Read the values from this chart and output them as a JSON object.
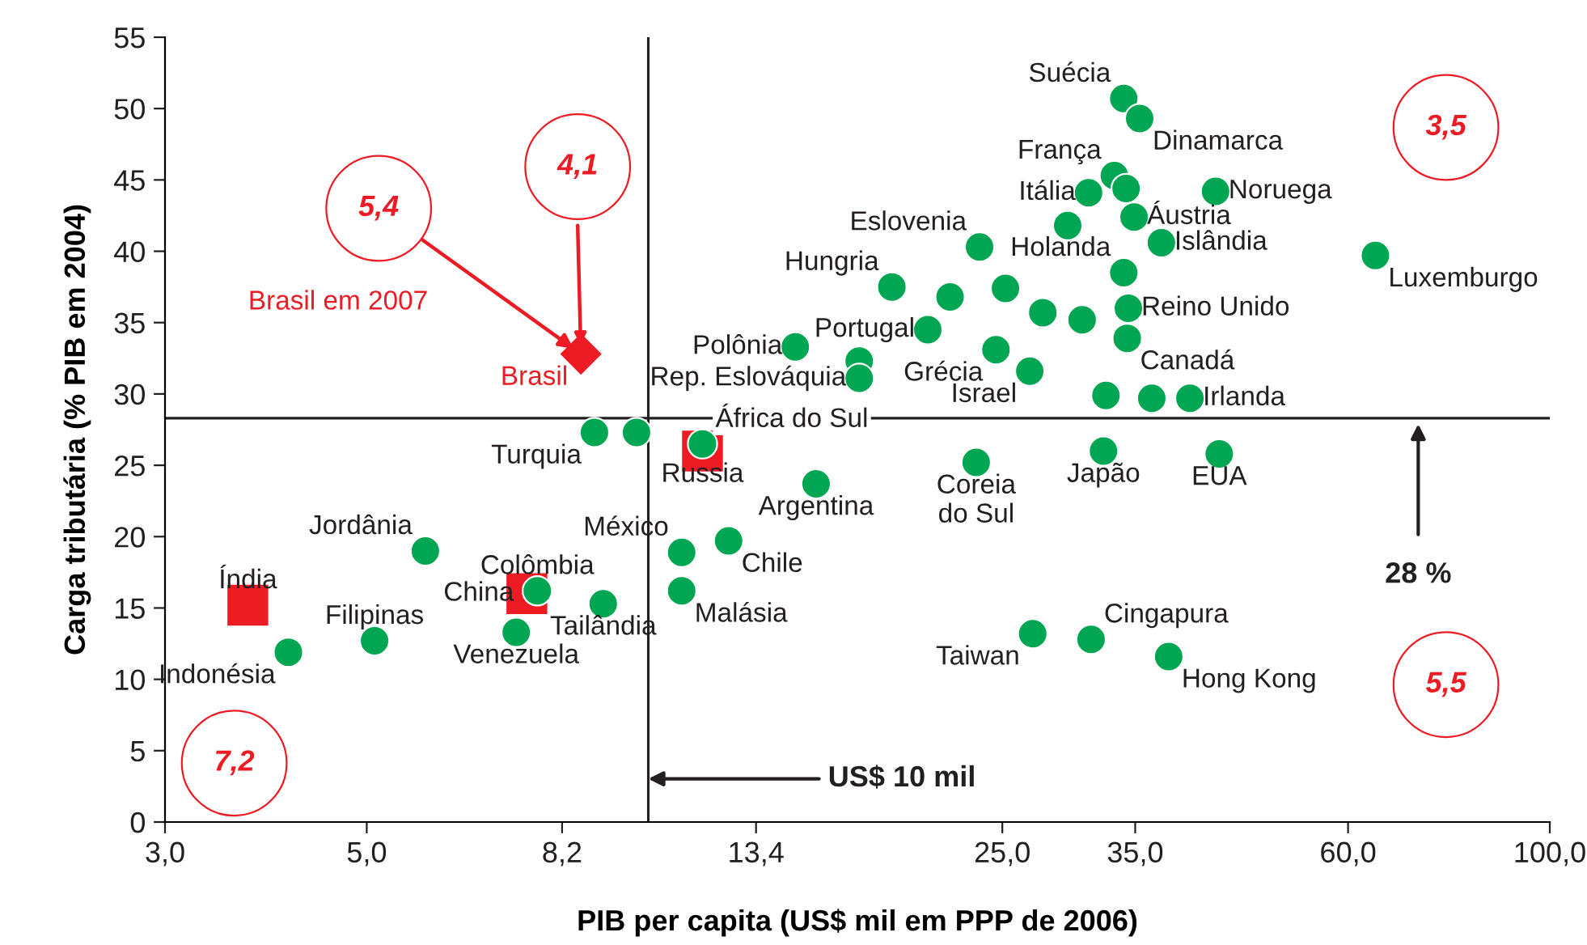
{
  "chart_data": {
    "type": "scatter",
    "xlabel": "PIB per capita (US$ mil em PPP de 2006)",
    "ylabel": "Carga tributária (% PIB em 2004)",
    "log": "x",
    "xlim": [
      3,
      100
    ],
    "xticks": [
      {
        "value": 3,
        "label": "3,0"
      },
      {
        "value": 5,
        "label": "5,0"
      },
      {
        "value": 8.2,
        "label": "8,2"
      },
      {
        "value": 13.4,
        "label": "13,4"
      },
      {
        "value": 25,
        "label": "25,0"
      },
      {
        "value": 35,
        "label": "35,0"
      },
      {
        "value": 60,
        "label": "60,0"
      },
      {
        "value": 100,
        "label": "100,0"
      }
    ],
    "ylim": [
      0,
      55
    ],
    "yticks": [
      0,
      5,
      10,
      15,
      20,
      25,
      30,
      35,
      40,
      45,
      50,
      55
    ],
    "grid": false,
    "series": [
      {
        "marker": "square",
        "color": "#ed1c24",
        "x": [
          3.7,
          7.5,
          11.7
        ],
        "values": [
          15.2,
          16.0,
          26.0
        ]
      },
      {
        "marker": "circle",
        "color": "#00a651",
        "x": [
          34.0,
          35.4,
          33.2,
          34.2,
          31.1,
          42.9,
          34.9,
          29.5,
          37.4,
          23.6,
          64.3,
          34.0,
          18.9,
          21.9,
          25.2,
          34.4,
          27.7,
          30.6,
          20.7,
          34.3,
          24.6,
          26.8,
          32.5,
          36.5,
          40.2,
          23.4,
          32.3,
          43.3,
          27.0,
          31.3,
          38.1,
          14.8,
          17.4,
          17.4,
          11.7,
          8.9,
          9.9,
          15.6,
          11.1,
          12.5,
          11.1,
          9.1,
          7.3,
          7.7,
          5.1,
          5.8,
          4.1
        ],
        "values": [
          50.7,
          49.3,
          45.3,
          44.4,
          44.1,
          44.2,
          42.4,
          41.8,
          40.6,
          40.3,
          39.7,
          38.5,
          37.5,
          36.8,
          37.4,
          36.0,
          35.7,
          35.2,
          34.5,
          33.9,
          33.1,
          31.6,
          29.9,
          29.7,
          29.7,
          25.2,
          26.0,
          25.8,
          13.2,
          12.8,
          11.6,
          33.3,
          32.3,
          31.1,
          26.5,
          27.3,
          27.3,
          23.7,
          18.9,
          19.7,
          16.2,
          15.3,
          13.3,
          16.2,
          12.7,
          19.0,
          11.9
        ]
      },
      {
        "marker": "diamond",
        "color": "#ed1c24",
        "x": [
          8.6
        ],
        "values": [
          32.8
        ]
      }
    ],
    "ref_lines": [
      {
        "axis": "y",
        "value": 28.3,
        "label": "28 %",
        "color": "#231f20"
      },
      {
        "axis": "x",
        "value": 10.2,
        "label": "US$ 10 mil",
        "color": "#231f20"
      }
    ],
    "annotations": [
      {
        "text": "Suécia",
        "x": 34.0,
        "y": 50.7
      },
      {
        "text": "Dinamarca",
        "x": 35.4,
        "y": 49.3
      },
      {
        "text": "França",
        "x": 33.2,
        "y": 45.3
      },
      {
        "text": "Itália",
        "x": 31.1,
        "y": 44.1
      },
      {
        "text": "Noruega",
        "x": 42.9,
        "y": 44.2
      },
      {
        "text": "Áustria",
        "x": 34.9,
        "y": 42.4
      },
      {
        "text": "Islândia",
        "x": 37.4,
        "y": 40.6
      },
      {
        "text": "Eslovenia",
        "x": 23.6,
        "y": 40.3
      },
      {
        "text": "Luxemburgo",
        "x": 64.3,
        "y": 39.7
      },
      {
        "text": "Holanda",
        "x": 34.0,
        "y": 38.5
      },
      {
        "text": "Hungria",
        "x": 18.9,
        "y": 37.5
      },
      {
        "text": "Reino Unido",
        "x": 34.4,
        "y": 36.0
      },
      {
        "text": "Portugal",
        "x": 20.7,
        "y": 34.5
      },
      {
        "text": "Canadá",
        "x": 34.3,
        "y": 33.9
      },
      {
        "text": "Grécia",
        "x": 24.6,
        "y": 33.1
      },
      {
        "text": "Israel",
        "x": 26.8,
        "y": 31.6
      },
      {
        "text": "Irlanda",
        "x": 40.2,
        "y": 29.7
      },
      {
        "text": "Coreia\ndo Sul",
        "x": 23.4,
        "y": 25.2
      },
      {
        "text": "Japão",
        "x": 32.3,
        "y": 26.0
      },
      {
        "text": "EUA",
        "x": 43.3,
        "y": 25.8
      },
      {
        "text": "Taiwan",
        "x": 27.0,
        "y": 13.2
      },
      {
        "text": "Cingapura",
        "x": 31.3,
        "y": 12.8
      },
      {
        "text": "Hong Kong",
        "x": 38.1,
        "y": 11.6
      },
      {
        "text": "Polônia",
        "x": 14.8,
        "y": 33.3
      },
      {
        "text": "Rep. Eslováquia",
        "x": 17.4,
        "y": 31.1
      },
      {
        "text": "África do Sul",
        "x": 11.7,
        "y": 26.5
      },
      {
        "text": "Russia",
        "x": 11.7,
        "y": 26.0
      },
      {
        "text": "Turquia",
        "x": 8.9,
        "y": 27.3
      },
      {
        "text": "Argentina",
        "x": 15.6,
        "y": 23.7
      },
      {
        "text": "México",
        "x": 11.1,
        "y": 18.9
      },
      {
        "text": "Chile",
        "x": 12.5,
        "y": 19.7
      },
      {
        "text": "Malásia",
        "x": 11.1,
        "y": 16.2
      },
      {
        "text": "Tailândia",
        "x": 9.1,
        "y": 15.3
      },
      {
        "text": "Venezuela",
        "x": 7.3,
        "y": 13.3
      },
      {
        "text": "Colômbia",
        "x": 7.7,
        "y": 16.2
      },
      {
        "text": "China",
        "x": 7.5,
        "y": 16.0
      },
      {
        "text": "Filipinas",
        "x": 5.1,
        "y": 12.7
      },
      {
        "text": "Jordânia",
        "x": 5.8,
        "y": 19.0
      },
      {
        "text": "Índia",
        "x": 3.7,
        "y": 15.2
      },
      {
        "text": "Indonésia",
        "x": 4.1,
        "y": 11.9
      },
      {
        "text": "Brasil",
        "x": 8.6,
        "y": 32.8
      },
      "Brasil em 2007",
      {
        "text": "5,4",
        "x": 8.6,
        "y": 32.8
      },
      "4,1",
      "3,5",
      "5,5",
      "7,2"
    ]
  }
}
